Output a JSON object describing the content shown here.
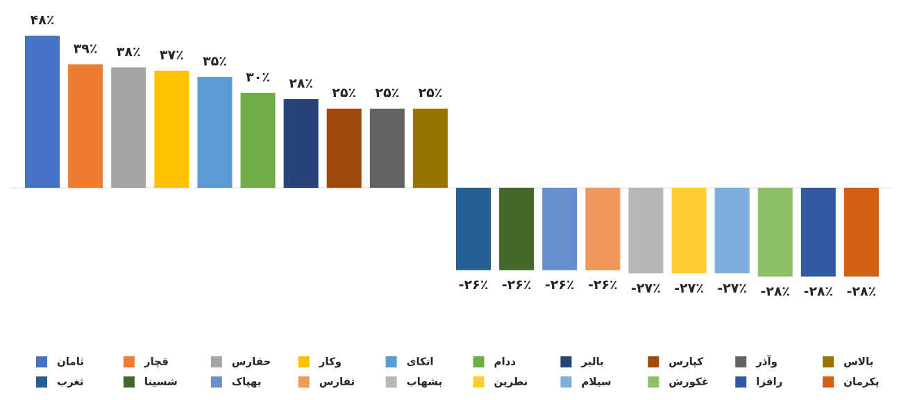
{
  "chart_data": {
    "type": "bar",
    "ylim": [
      -30,
      50
    ],
    "series": [
      {
        "name": "ثامان",
        "color": "#4472c4",
        "values": [
          48
        ],
        "value_labels": [
          "۴۸٪"
        ]
      },
      {
        "name": "قچار",
        "color": "#ed7d31",
        "values": [
          39
        ],
        "value_labels": [
          "۳۹٪"
        ]
      },
      {
        "name": "حفارس",
        "color": "#a5a5a5",
        "values": [
          38
        ],
        "value_labels": [
          "۳۸٪"
        ]
      },
      {
        "name": "وکار",
        "color": "#ffc000",
        "values": [
          37
        ],
        "value_labels": [
          "۳۷٪"
        ]
      },
      {
        "name": "اتکای",
        "color": "#5b9bd5",
        "values": [
          35
        ],
        "value_labels": [
          "۳۵٪"
        ]
      },
      {
        "name": "ددام",
        "color": "#70ad47",
        "values": [
          30
        ],
        "value_labels": [
          "۳۰٪"
        ]
      },
      {
        "name": "بالبر",
        "color": "#264478",
        "values": [
          28
        ],
        "value_labels": [
          "۲۸٪"
        ]
      },
      {
        "name": "کپارس",
        "color": "#9e480e",
        "values": [
          25
        ],
        "value_labels": [
          "۲۵٪"
        ]
      },
      {
        "name": "وآذر",
        "color": "#636363",
        "values": [
          25
        ],
        "value_labels": [
          "۲۵٪"
        ]
      },
      {
        "name": "بالاس",
        "color": "#997300",
        "values": [
          25
        ],
        "value_labels": [
          "۲۵٪"
        ]
      },
      {
        "name": "ثغرب",
        "color": "#255e91",
        "values": [
          -26
        ],
        "value_labels": [
          "-۲۶٪"
        ]
      },
      {
        "name": "شسینا",
        "color": "#43682b",
        "values": [
          -26
        ],
        "value_labels": [
          "-۲۶٪"
        ]
      },
      {
        "name": "بهپاک",
        "color": "#698ed0",
        "values": [
          -26
        ],
        "value_labels": [
          "-۲۶٪"
        ]
      },
      {
        "name": "ثفارس",
        "color": "#f1975a",
        "values": [
          -26
        ],
        "value_labels": [
          "-۲۶٪"
        ]
      },
      {
        "name": "بشهاب",
        "color": "#b7b7b7",
        "values": [
          -27
        ],
        "value_labels": [
          "-۲۷٪"
        ]
      },
      {
        "name": "نطرین",
        "color": "#ffcd33",
        "values": [
          -27
        ],
        "value_labels": [
          "-۲۷٪"
        ]
      },
      {
        "name": "سیلام",
        "color": "#7cafdd",
        "values": [
          -27
        ],
        "value_labels": [
          "-۲۷٪"
        ]
      },
      {
        "name": "غکورش",
        "color": "#8cc168",
        "values": [
          -28
        ],
        "value_labels": [
          "-۲۸٪"
        ]
      },
      {
        "name": "رافزا",
        "color": "#335aa1",
        "values": [
          -28
        ],
        "value_labels": [
          "-۲۸٪"
        ]
      },
      {
        "name": "پکرمان",
        "color": "#d26012",
        "values": [
          -28
        ],
        "value_labels": [
          "-۲۸٪"
        ]
      }
    ]
  }
}
